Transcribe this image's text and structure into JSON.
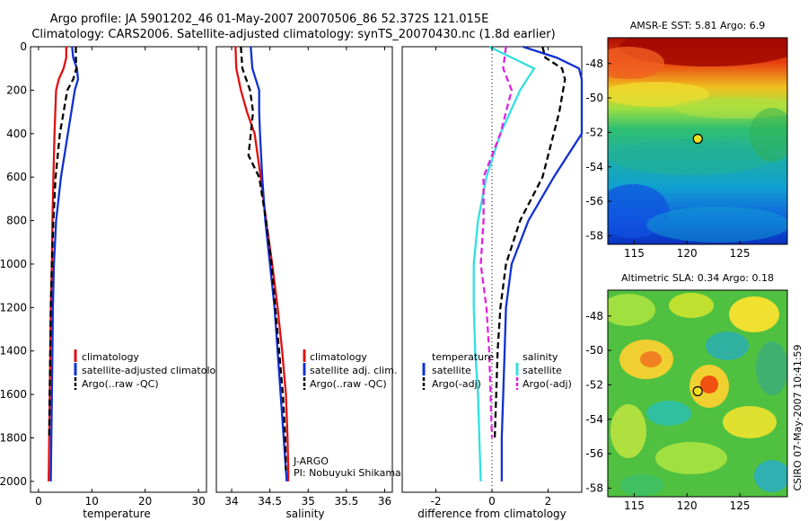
{
  "header": {
    "line1": "Argo profile: JA 5901202_46 01-May-2007 20070506_86 52.372S 121.015E",
    "line2": "Climatology: CARS2006. Satellite-adjusted climatology: synTS_20070430.nc (1.8d earlier)"
  },
  "colors": {
    "climatology": "#e01010",
    "satellite": "#1030d0",
    "argo": "#000000",
    "salinity_satellite": "#30e0e0",
    "salinity_argo": "#e020e0"
  },
  "chart_data": [
    {
      "type": "line",
      "xlabel": "temperature",
      "xticks": [
        0,
        10,
        20,
        30
      ],
      "xlim": [
        -1.5,
        31.5
      ],
      "ylim": [
        2050,
        0
      ],
      "yticks": [
        0,
        200,
        400,
        600,
        800,
        1000,
        1200,
        1400,
        1600,
        1800,
        2000
      ],
      "legend": [
        "climatology",
        "satellite-adjusted climatology",
        "Argo(..raw -QC)"
      ],
      "legend_position": "lower-right",
      "series": [
        {
          "name": "climatology",
          "style": "solid",
          "color": "#e01010",
          "x": [
            5.2,
            5.2,
            4.7,
            3.8,
            3.3,
            3.0,
            2.8,
            2.6,
            2.5,
            2.3,
            2.2,
            2.1,
            2.0,
            1.9
          ],
          "y": [
            0,
            50,
            100,
            150,
            200,
            400,
            600,
            800,
            1000,
            1200,
            1400,
            1600,
            1800,
            2000
          ]
        },
        {
          "name": "satellite-adjusted climatology",
          "style": "solid",
          "color": "#1030d0",
          "x": [
            6.3,
            6.5,
            7.2,
            7.4,
            6.8,
            5.5,
            4.2,
            3.3,
            2.9,
            2.7,
            2.6,
            2.5,
            2.4,
            2.3
          ],
          "y": [
            0,
            50,
            100,
            150,
            200,
            400,
            600,
            800,
            1000,
            1200,
            1400,
            1600,
            1800,
            2000
          ]
        },
        {
          "name": "Argo(..raw -QC)",
          "style": "dashed",
          "color": "#000000",
          "x": [
            7.0,
            7.0,
            7.1,
            6.5,
            5.4,
            4.0,
            3.2,
            2.8,
            2.5,
            2.3,
            2.2,
            2.1,
            2.0
          ],
          "y": [
            0,
            50,
            100,
            150,
            200,
            400,
            600,
            800,
            1000,
            1200,
            1400,
            1600,
            1800
          ]
        }
      ]
    },
    {
      "type": "line",
      "xlabel": "salinity",
      "xticks": [
        34,
        34.5,
        35,
        35.5,
        36
      ],
      "xlim": [
        33.8,
        36.1
      ],
      "ylim": [
        2050,
        0
      ],
      "legend": [
        "climatology",
        "satellite adj. clim.",
        "Argo(..raw -QC)"
      ],
      "legend_position": "lower-right",
      "annotation_lines": [
        "J-ARGO",
        "PI: Nobuyuki Shikama"
      ],
      "series": [
        {
          "name": "climatology",
          "style": "solid",
          "color": "#e01010",
          "x": [
            34.05,
            34.06,
            34.12,
            34.2,
            34.3,
            34.38,
            34.45,
            34.53,
            34.6,
            34.66,
            34.71,
            34.73,
            34.74,
            34.74
          ],
          "y": [
            0,
            100,
            200,
            300,
            400,
            600,
            800,
            1000,
            1200,
            1400,
            1600,
            1800,
            1950,
            2000
          ]
        },
        {
          "name": "satellite adj. clim.",
          "style": "solid",
          "color": "#1030d0",
          "x": [
            34.25,
            34.27,
            34.36,
            34.36,
            34.37,
            34.4,
            34.44,
            34.5,
            34.56,
            34.6,
            34.64,
            34.68,
            34.71,
            34.72
          ],
          "y": [
            0,
            100,
            200,
            300,
            400,
            600,
            800,
            1000,
            1200,
            1400,
            1600,
            1800,
            1950,
            2000
          ]
        },
        {
          "name": "Argo(..raw -QC)",
          "style": "dashed",
          "color": "#000000",
          "x": [
            34.12,
            34.14,
            34.24,
            34.28,
            34.22,
            34.36,
            34.45,
            34.52,
            34.57,
            34.62,
            34.67,
            34.7,
            34.71
          ],
          "y": [
            0,
            100,
            200,
            300,
            500,
            600,
            800,
            1000,
            1200,
            1400,
            1600,
            1800,
            1950
          ]
        }
      ]
    },
    {
      "type": "line",
      "xlabel": "difference from climatology",
      "xticks": [
        -2,
        0,
        2
      ],
      "xlim": [
        -3.2,
        3.2
      ],
      "ylim": [
        2050,
        0
      ],
      "legend_groups": [
        {
          "title": "temperature",
          "items": [
            "satellite",
            "Argo(-adj)"
          ]
        },
        {
          "title": "salinity",
          "items": [
            "satellite",
            "Argo(-adj)"
          ]
        }
      ],
      "series": [
        {
          "name": "temperature satellite",
          "style": "solid",
          "color": "#1030d0",
          "x": [
            1.1,
            2.3,
            3.1,
            3.2,
            3.2,
            2.2,
            1.3,
            0.7,
            0.5,
            0.45,
            0.4,
            0.35,
            0.35
          ],
          "y": [
            0,
            50,
            100,
            150,
            400,
            600,
            800,
            1000,
            1200,
            1400,
            1600,
            1800,
            2000
          ]
        },
        {
          "name": "temperature Argo(-adj)",
          "style": "dashed",
          "color": "#000000",
          "x": [
            1.8,
            1.9,
            2.5,
            2.6,
            2.4,
            1.8,
            1.0,
            0.5,
            0.3,
            0.2,
            0.15,
            0.1
          ],
          "y": [
            0,
            50,
            100,
            150,
            300,
            600,
            800,
            1000,
            1200,
            1400,
            1600,
            1800
          ]
        },
        {
          "name": "salinity satellite",
          "style": "solid",
          "color": "#30e0e0",
          "x": [
            -0.1,
            1.5,
            1.0,
            0.3,
            -0.2,
            -0.5,
            -0.65,
            -0.65,
            -0.6,
            -0.5,
            -0.45,
            -0.4
          ],
          "y": [
            0,
            100,
            200,
            400,
            600,
            800,
            1000,
            1200,
            1400,
            1600,
            1800,
            2000
          ]
        },
        {
          "name": "salinity Argo(-adj)",
          "style": "dashed",
          "color": "#e020e0",
          "x": [
            0.5,
            0.4,
            0.7,
            0.3,
            -0.3,
            -0.3,
            -0.4,
            -0.2,
            -0.1,
            -0.05,
            0.0
          ],
          "y": [
            0,
            100,
            200,
            400,
            600,
            800,
            1000,
            1200,
            1400,
            1600,
            1800
          ]
        }
      ]
    },
    {
      "type": "heatmap",
      "title": "AMSR-E SST: 5.81 Argo: 6.9",
      "xticks": [
        115,
        120,
        125
      ],
      "yticks": [
        -48,
        -50,
        -52,
        -54,
        -56,
        -58
      ],
      "xlim": [
        112.5,
        129.5
      ],
      "ylim": [
        -58.5,
        -46.5
      ],
      "marker": {
        "lon": 121.015,
        "lat": -52.372
      },
      "colormap": "jet"
    },
    {
      "type": "heatmap",
      "title": "Altimetric SLA: 0.34 Argo: 0.18",
      "xticks": [
        115,
        120,
        125
      ],
      "yticks": [
        -48,
        -50,
        -52,
        -54,
        -56,
        -58
      ],
      "xlim": [
        112.5,
        129.5
      ],
      "ylim": [
        -58.5,
        -46.5
      ],
      "marker": {
        "lon": 121.015,
        "lat": -52.372
      },
      "colormap": "jet"
    }
  ],
  "side_label": "CSIRO 07-May-2007 10:41:59"
}
